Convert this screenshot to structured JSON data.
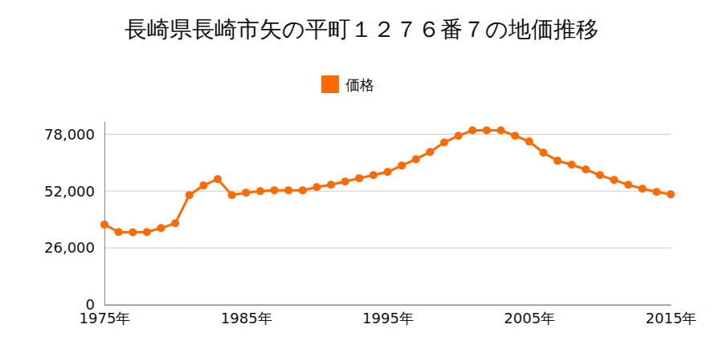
{
  "chart_data": {
    "type": "line",
    "title": "長崎県長崎市矢の平町１２７６番７の地価推移",
    "x": [
      1975,
      1976,
      1977,
      1978,
      1979,
      1980,
      1981,
      1982,
      1983,
      1984,
      1985,
      1986,
      1987,
      1988,
      1989,
      1990,
      1991,
      1992,
      1993,
      1994,
      1995,
      1996,
      1997,
      1998,
      1999,
      2000,
      2001,
      2002,
      2003,
      2004,
      2005,
      2006,
      2007,
      2008,
      2009,
      2010,
      2011,
      2012,
      2013,
      2014,
      2015
    ],
    "series": [
      {
        "name": "価格",
        "color": "#ff6a00",
        "marker": "circle",
        "values": [
          36700,
          33300,
          33200,
          33300,
          35100,
          37300,
          50200,
          54600,
          57500,
          50200,
          51300,
          52000,
          52400,
          52400,
          52400,
          53800,
          54900,
          56400,
          57900,
          59300,
          60800,
          63700,
          66600,
          69900,
          74300,
          77300,
          79800,
          79800,
          79800,
          77300,
          74700,
          69600,
          65900,
          64100,
          61900,
          59300,
          57100,
          54900,
          53100,
          51600,
          50500
        ]
      }
    ],
    "xlim": [
      1975,
      2015
    ],
    "xticks": [
      {
        "value": 1975,
        "label": "1975年"
      },
      {
        "value": 1985,
        "label": "1985年"
      },
      {
        "value": 1995,
        "label": "1995年"
      },
      {
        "value": 2005,
        "label": "2005年"
      },
      {
        "value": 2015,
        "label": "2015年"
      }
    ],
    "ylim": [
      0,
      84000
    ],
    "yticks": [
      0,
      {
        "value": 26000,
        "label": "26,000"
      },
      {
        "value": 52000,
        "label": "52,000"
      },
      {
        "value": 78000,
        "label": "78,000"
      }
    ],
    "grid": true,
    "legend": "top"
  }
}
